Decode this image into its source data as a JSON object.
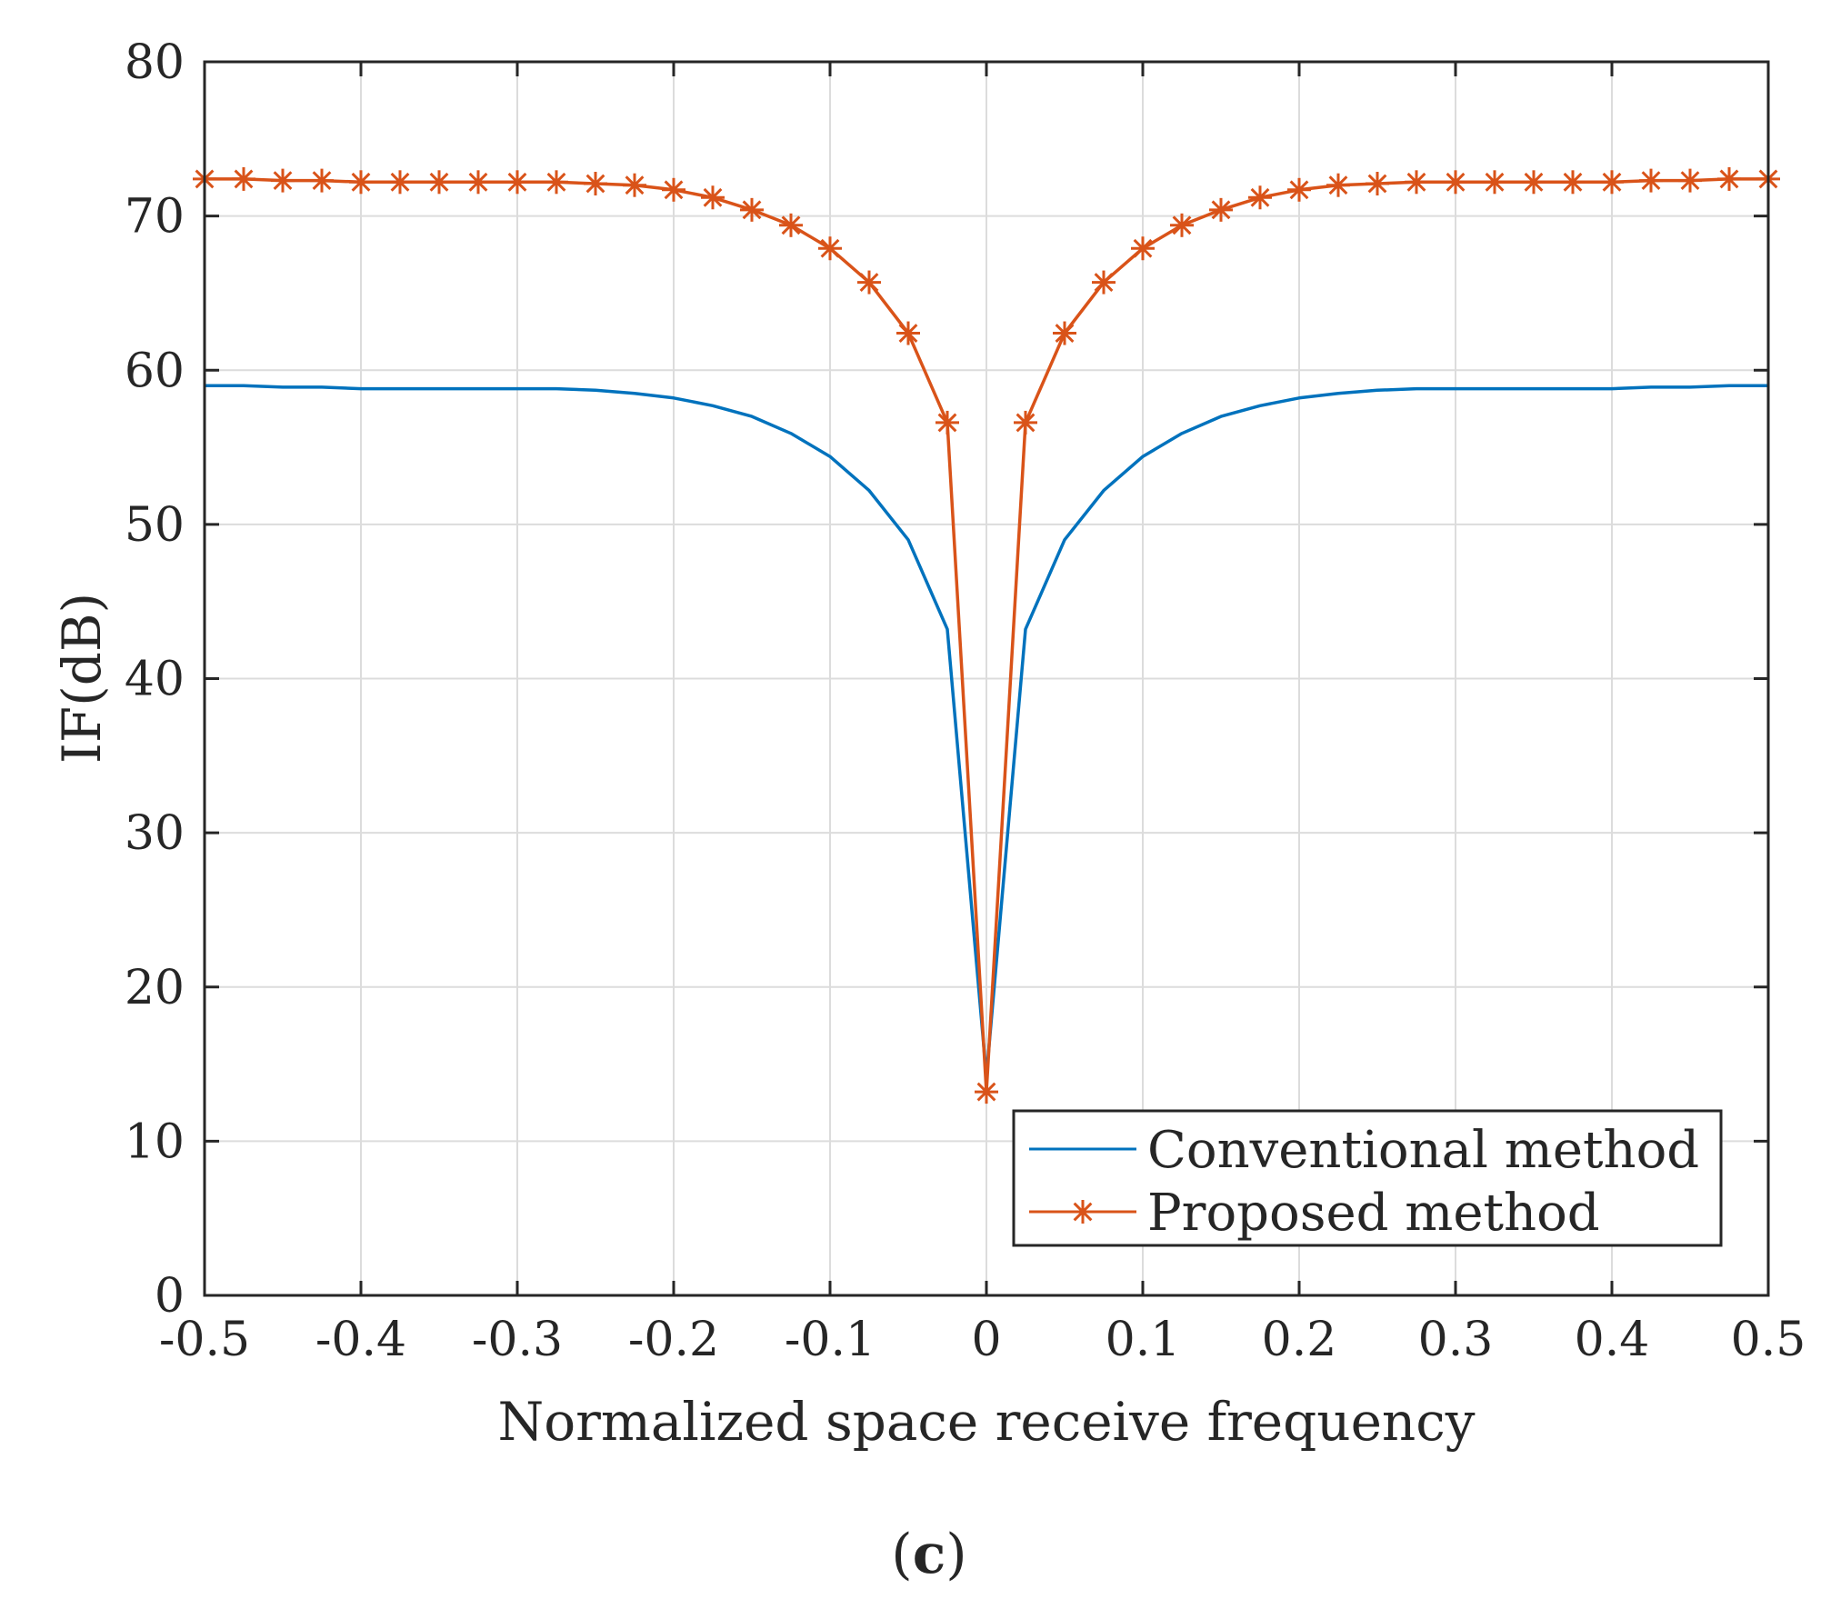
{
  "chart_data": {
    "type": "line",
    "title": "",
    "xlabel": "Normalized space receive frequency",
    "ylabel": "IF(dB)",
    "xlim": [
      -0.5,
      0.5
    ],
    "ylim": [
      0,
      80
    ],
    "grid": true,
    "x_ticks": [
      -0.5,
      -0.4,
      -0.3,
      -0.2,
      -0.1,
      0,
      0.1,
      0.2,
      0.3,
      0.4,
      0.5
    ],
    "x_tick_labels": [
      "-0.5",
      "-0.4",
      "-0.3",
      "-0.2",
      "-0.1",
      "0",
      "0.1",
      "0.2",
      "0.3",
      "0.4",
      "0.5"
    ],
    "y_ticks": [
      0,
      10,
      20,
      30,
      40,
      50,
      60,
      70,
      80
    ],
    "y_tick_labels": [
      "0",
      "10",
      "20",
      "30",
      "40",
      "50",
      "60",
      "70",
      "80"
    ],
    "legend_position": "bottom-right",
    "x": [
      -0.5,
      -0.475,
      -0.45,
      -0.425,
      -0.4,
      -0.375,
      -0.35,
      -0.325,
      -0.3,
      -0.275,
      -0.25,
      -0.225,
      -0.2,
      -0.175,
      -0.15,
      -0.125,
      -0.1,
      -0.075,
      -0.05,
      -0.025,
      0,
      0.025,
      0.05,
      0.075,
      0.1,
      0.125,
      0.15,
      0.175,
      0.2,
      0.225,
      0.25,
      0.275,
      0.3,
      0.325,
      0.35,
      0.375,
      0.4,
      0.425,
      0.45,
      0.475,
      0.5
    ],
    "series": [
      {
        "name": "Conventional method",
        "color": "#0072BD",
        "marker": "none",
        "values": [
          59.0,
          59.0,
          58.9,
          58.9,
          58.8,
          58.8,
          58.8,
          58.8,
          58.8,
          58.8,
          58.7,
          58.5,
          58.2,
          57.7,
          57.0,
          55.9,
          54.4,
          52.2,
          49.0,
          43.2,
          14.2,
          43.2,
          49.0,
          52.2,
          54.4,
          55.9,
          57.0,
          57.7,
          58.2,
          58.5,
          58.7,
          58.8,
          58.8,
          58.8,
          58.8,
          58.8,
          58.8,
          58.9,
          58.9,
          59.0,
          59.0
        ]
      },
      {
        "name": "Proposed method",
        "color": "#D95319",
        "marker": "asterisk",
        "values": [
          72.4,
          72.4,
          72.3,
          72.3,
          72.2,
          72.2,
          72.2,
          72.2,
          72.2,
          72.2,
          72.1,
          72.0,
          71.7,
          71.2,
          70.4,
          69.4,
          67.9,
          65.7,
          62.4,
          56.6,
          13.2,
          56.6,
          62.4,
          65.7,
          67.9,
          69.4,
          70.4,
          71.2,
          71.7,
          72.0,
          72.1,
          72.2,
          72.2,
          72.2,
          72.2,
          72.2,
          72.2,
          72.3,
          72.3,
          72.4,
          72.4
        ]
      }
    ]
  },
  "caption": {
    "open": "(",
    "letter": "c",
    "close": ")"
  }
}
